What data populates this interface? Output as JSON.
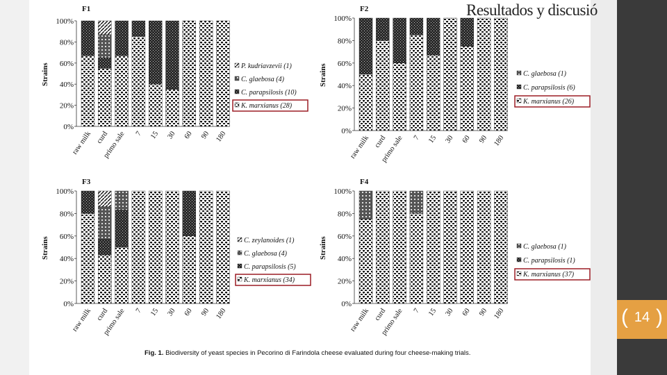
{
  "slide": {
    "title": "Resultados y discusió",
    "page_number": "14",
    "caption_label": "Fig. 1.",
    "caption_text": "Biodiversity of yeast species in Pecorino di Farindola cheese evaluated during four cheese-making trials.",
    "highlight_color": "#9b1c24"
  },
  "chart_data": [
    {
      "type": "bar",
      "stacked": true,
      "title": "F1",
      "ylabel": "Strains",
      "ylim": [
        0,
        100
      ],
      "yticks": [
        "0%",
        "20%",
        "40%",
        "60%",
        "80%",
        "100%"
      ],
      "categories": [
        "raw milk",
        "curd",
        "primo sale",
        "7",
        "15",
        "30",
        "60",
        "90",
        "180"
      ],
      "series": [
        {
          "name": "K. marxianus (28)",
          "values": [
            67,
            55,
            67,
            85,
            40,
            35,
            100,
            100,
            100
          ]
        },
        {
          "name": "C. parapsilosis (10)",
          "values": [
            33,
            10,
            33,
            15,
            60,
            65,
            0,
            0,
            0
          ]
        },
        {
          "name": "C. glaebosa (4)",
          "values": [
            0,
            22,
            0,
            0,
            0,
            0,
            0,
            0,
            0
          ]
        },
        {
          "name": "P. kudriavzevii (1)",
          "values": [
            0,
            13,
            0,
            0,
            0,
            0,
            0,
            0,
            0
          ]
        }
      ],
      "legend": "right",
      "highlighted_legend": "K. marxianus (28)"
    },
    {
      "type": "bar",
      "stacked": true,
      "title": "F2",
      "ylabel": "Strains",
      "ylim": [
        0,
        100
      ],
      "yticks": [
        "0%",
        "20%",
        "40%",
        "60%",
        "80%",
        "100%"
      ],
      "categories": [
        "raw milk",
        "curd",
        "primo sale",
        "7",
        "15",
        "30",
        "60",
        "90",
        "180"
      ],
      "series": [
        {
          "name": "K. marxianus (26)",
          "values": [
            50,
            80,
            60,
            85,
            67,
            100,
            75,
            100,
            100
          ]
        },
        {
          "name": "C. parapsilosis (6)",
          "values": [
            50,
            20,
            40,
            15,
            33,
            0,
            25,
            0,
            0
          ]
        },
        {
          "name": "C. glaebosa (1)",
          "values": [
            0,
            0,
            0,
            0,
            0,
            0,
            0,
            0,
            0
          ]
        }
      ],
      "legend": "right",
      "highlighted_legend": "K. marxianus (26)"
    },
    {
      "type": "bar",
      "stacked": true,
      "title": "F3",
      "ylabel": "Strains",
      "ylim": [
        0,
        100
      ],
      "yticks": [
        "0%",
        "20%",
        "40%",
        "60%",
        "80%",
        "100%"
      ],
      "categories": [
        "raw milk",
        "curd",
        "primo sale",
        "7",
        "15",
        "30",
        "60",
        "90",
        "180"
      ],
      "series": [
        {
          "name": "K. marxianus (34)",
          "values": [
            80,
            43,
            50,
            100,
            100,
            100,
            60,
            100,
            100
          ]
        },
        {
          "name": "C. parapsilosis (5)",
          "values": [
            20,
            14,
            33,
            0,
            0,
            0,
            40,
            0,
            0
          ]
        },
        {
          "name": "C. glaebosa (4)",
          "values": [
            0,
            29,
            17,
            0,
            0,
            0,
            0,
            0,
            0
          ]
        },
        {
          "name": "C. zeylanoides (1)",
          "values": [
            0,
            14,
            0,
            0,
            0,
            0,
            0,
            0,
            0
          ]
        }
      ],
      "legend": "right",
      "highlighted_legend": "K. marxianus (34)"
    },
    {
      "type": "bar",
      "stacked": true,
      "title": "F4",
      "ylabel": "Strains",
      "ylim": [
        0,
        100
      ],
      "yticks": [
        "0%",
        "20%",
        "40%",
        "60%",
        "80%",
        "100%"
      ],
      "categories": [
        "raw milk",
        "curd",
        "primo sale",
        "7",
        "15",
        "30",
        "60",
        "90",
        "180"
      ],
      "series": [
        {
          "name": "K. marxianus (37)",
          "values": [
            75,
            100,
            100,
            80,
            100,
            100,
            100,
            100,
            100
          ]
        },
        {
          "name": "C. parapsilosis (1)",
          "values": [
            0,
            0,
            0,
            0,
            0,
            0,
            0,
            0,
            0
          ]
        },
        {
          "name": "C. glaebosa (1)",
          "values": [
            25,
            0,
            0,
            20,
            0,
            0,
            0,
            0,
            0
          ]
        }
      ],
      "legend": "right",
      "highlighted_legend": "K. marxianus (37)"
    }
  ]
}
